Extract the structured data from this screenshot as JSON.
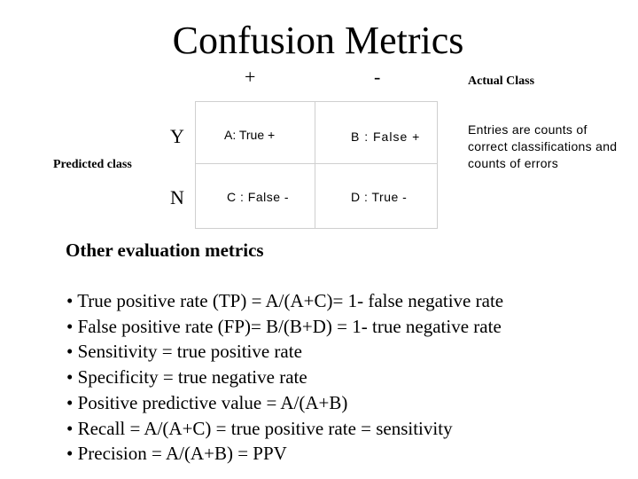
{
  "title": "Confusion Metrics",
  "matrix": {
    "col_plus": "+",
    "col_minus": "-",
    "actual_class_label": "Actual Class",
    "row_y": "Y",
    "row_n": "N",
    "predicted_class_label": "Predicted class",
    "cells": {
      "a": "A: True +",
      "b": "B : False  +",
      "c": "C : False -",
      "d": "D : True -"
    },
    "note": "Entries are counts of correct classifications and counts of errors"
  },
  "section": {
    "heading": "Other evaluation metrics",
    "items": [
      "• True positive rate (TP) = A/(A+C)= 1- false negative rate",
      "• False positive rate (FP)= B/(B+D) = 1- true negative rate",
      "• Sensitivity = true positive rate",
      "• Specificity = true negative rate",
      "• Positive predictive value = A/(A+B)",
      "• Recall = A/(A+C) = true positive rate = sensitivity",
      "•  Precision = A/(A+B) = PPV"
    ]
  }
}
